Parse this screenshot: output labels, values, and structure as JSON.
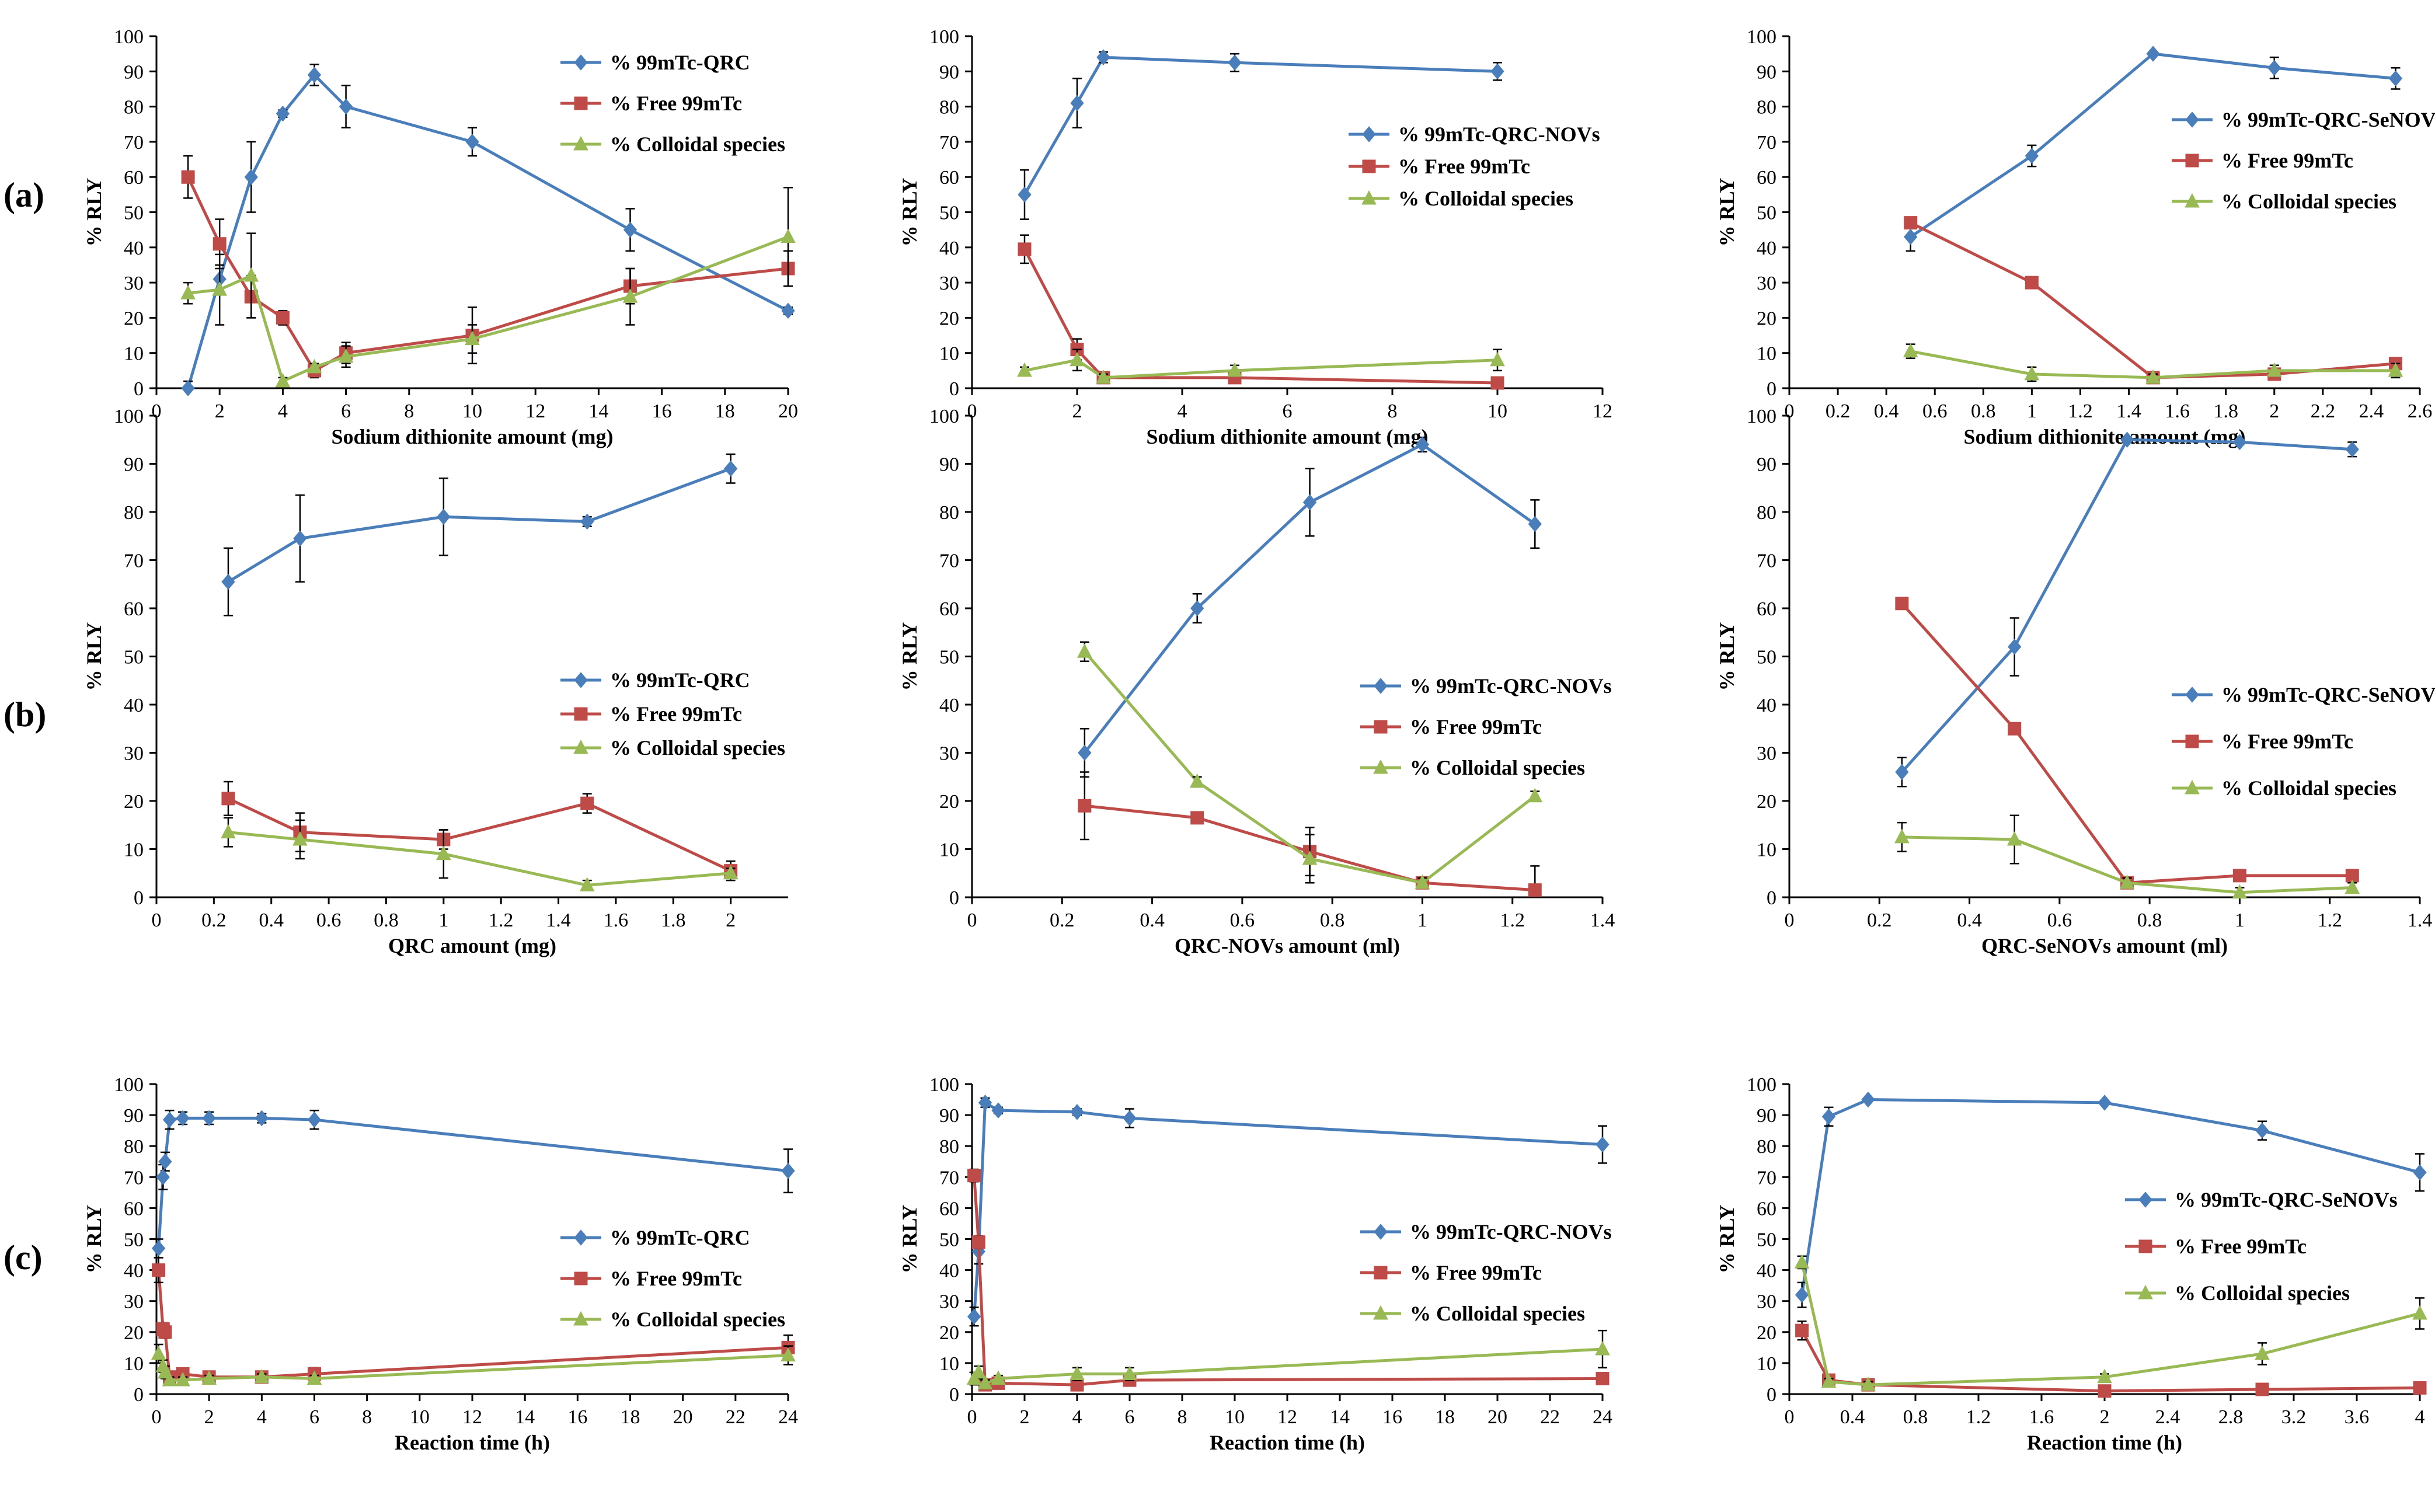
{
  "colors": {
    "blue": "#4a7ebb",
    "red": "#be4b48",
    "green": "#98b954",
    "axis": "#000000"
  },
  "row_labels": [
    "(a)",
    "(b)",
    "(c)"
  ],
  "chart_data": [
    {
      "id": "a1",
      "type": "line",
      "row": "(a)",
      "col": 0,
      "xlabel": "Sodium dithionite amount (mg)",
      "ylabel": "% RLY",
      "xlim": [
        0,
        20
      ],
      "xticks": [
        0,
        2,
        4,
        6,
        8,
        10,
        12,
        14,
        16,
        18,
        20
      ],
      "ylim": [
        0,
        100
      ],
      "yticks": [
        0,
        10,
        20,
        30,
        40,
        50,
        60,
        70,
        80,
        90,
        100
      ],
      "legend_position": "top-right",
      "series": [
        {
          "name": "% 99mTc-QRC",
          "color": "blue",
          "marker": "diamond",
          "x": [
            1,
            2,
            3,
            4,
            5,
            6,
            10,
            15,
            20
          ],
          "y": [
            0,
            31,
            60,
            78,
            89,
            80,
            70,
            45,
            22
          ],
          "err": [
            2,
            4,
            10,
            1,
            3,
            6,
            4,
            6,
            1
          ]
        },
        {
          "name": "% Free 99mTc",
          "color": "red",
          "marker": "square",
          "x": [
            1,
            2,
            3,
            4,
            5,
            6,
            10,
            15,
            20
          ],
          "y": [
            60,
            41,
            26,
            20,
            5,
            10,
            15,
            29,
            34
          ],
          "err": [
            6,
            7,
            6,
            2,
            2,
            3,
            8,
            5,
            5
          ]
        },
        {
          "name": "% Colloidal species",
          "color": "green",
          "marker": "triangle",
          "x": [
            1,
            2,
            3,
            4,
            5,
            6,
            10,
            15,
            20
          ],
          "y": [
            27,
            28,
            32,
            2,
            6,
            9,
            14,
            26,
            43
          ],
          "err": [
            3,
            10,
            12,
            1,
            1,
            3,
            4,
            8,
            14
          ]
        }
      ]
    },
    {
      "id": "a2",
      "type": "line",
      "row": "(a)",
      "col": 1,
      "xlabel": "Sodium dithionite amount (mg)",
      "ylabel": "% RLY",
      "xlim": [
        0,
        12
      ],
      "xticks": [
        0,
        2,
        4,
        6,
        8,
        10,
        12
      ],
      "ylim": [
        0,
        100
      ],
      "yticks": [
        0,
        10,
        20,
        30,
        40,
        50,
        60,
        70,
        80,
        90,
        100
      ],
      "legend_position": "right",
      "series": [
        {
          "name": "% 99mTc-QRC-NOVs",
          "color": "blue",
          "marker": "diamond",
          "x": [
            1,
            2,
            2.5,
            5,
            10
          ],
          "y": [
            55,
            81,
            94,
            92.5,
            90
          ],
          "err": [
            7,
            7,
            1.5,
            2.5,
            2.5
          ]
        },
        {
          "name": "% Free 99mTc",
          "color": "red",
          "marker": "square",
          "x": [
            1,
            2,
            2.5,
            5,
            10
          ],
          "y": [
            39.5,
            11,
            3,
            3,
            1.5
          ],
          "err": [
            4,
            3,
            1,
            1,
            1
          ]
        },
        {
          "name": "% Colloidal species",
          "color": "green",
          "marker": "triangle",
          "x": [
            1,
            2,
            2.5,
            5,
            10
          ],
          "y": [
            5,
            8,
            3,
            5,
            8
          ],
          "err": [
            1,
            3,
            1,
            1.5,
            3
          ]
        }
      ]
    },
    {
      "id": "a3",
      "type": "line",
      "row": "(a)",
      "col": 2,
      "xlabel": "Sodium dithionite amount (mg)",
      "ylabel": "% RLY",
      "xlim": [
        0,
        2.6
      ],
      "xticks": [
        0,
        0.2,
        0.4,
        0.6,
        0.8,
        1,
        1.2,
        1.4,
        1.6,
        1.8,
        2,
        2.2,
        2.4,
        2.6
      ],
      "ylim": [
        0,
        100
      ],
      "yticks": [
        0,
        10,
        20,
        30,
        40,
        50,
        60,
        70,
        80,
        90,
        100
      ],
      "legend_position": "right",
      "series": [
        {
          "name": "% 99mTc-QRC-SeNOVs",
          "color": "blue",
          "marker": "diamond",
          "x": [
            0.5,
            1,
            1.5,
            2,
            2.5
          ],
          "y": [
            43,
            66,
            95,
            91,
            88
          ],
          "err": [
            4,
            3,
            0.5,
            3,
            3
          ]
        },
        {
          "name": "% Free 99mTc",
          "color": "red",
          "marker": "square",
          "x": [
            0.5,
            1,
            1.5,
            2,
            2.5
          ],
          "y": [
            47,
            30,
            3,
            4,
            7
          ],
          "err": [
            1,
            1,
            0.5,
            1,
            1
          ]
        },
        {
          "name": "% Colloidal species",
          "color": "green",
          "marker": "triangle",
          "x": [
            0.5,
            1,
            1.5,
            2,
            2.5
          ],
          "y": [
            10.5,
            4,
            3,
            5,
            5
          ],
          "err": [
            2,
            2,
            1,
            1.5,
            2
          ]
        }
      ]
    },
    {
      "id": "b1",
      "type": "line",
      "row": "(b)",
      "col": 0,
      "xlabel": "QRC amount (mg)",
      "ylabel": "% RLY",
      "xlim": [
        0,
        2.2
      ],
      "xticks": [
        0,
        0.2,
        0.4,
        0.6,
        0.8,
        1,
        1.2,
        1.4,
        1.6,
        1.8,
        2
      ],
      "ylim": [
        0,
        100
      ],
      "yticks": [
        0,
        10,
        20,
        30,
        40,
        50,
        60,
        70,
        80,
        90,
        100
      ],
      "legend_position": "right",
      "series": [
        {
          "name": "% 99mTc-QRC",
          "color": "blue",
          "marker": "diamond",
          "x": [
            0.25,
            0.5,
            1,
            1.5,
            2
          ],
          "y": [
            65.5,
            74.5,
            79,
            78,
            89
          ],
          "err": [
            7,
            9,
            8,
            1,
            3
          ]
        },
        {
          "name": "% Free 99mTc",
          "color": "red",
          "marker": "square",
          "x": [
            0.25,
            0.5,
            1,
            1.5,
            2
          ],
          "y": [
            20.5,
            13.5,
            12,
            19.5,
            5.5
          ],
          "err": [
            3.5,
            4,
            2,
            2,
            2
          ]
        },
        {
          "name": "% Colloidal species",
          "color": "green",
          "marker": "triangle",
          "x": [
            0.25,
            0.5,
            1,
            1.5,
            2
          ],
          "y": [
            13.5,
            12,
            9,
            2.5,
            5
          ],
          "err": [
            3,
            4,
            5,
            1,
            1
          ]
        }
      ]
    },
    {
      "id": "b2",
      "type": "line",
      "row": "(b)",
      "col": 1,
      "xlabel": "QRC-NOVs amount (ml)",
      "ylabel": "% RLY",
      "xlim": [
        0,
        1.4
      ],
      "xticks": [
        0,
        0.2,
        0.4,
        0.6,
        0.8,
        1,
        1.2,
        1.4
      ],
      "ylim": [
        0,
        100
      ],
      "yticks": [
        0,
        10,
        20,
        30,
        40,
        50,
        60,
        70,
        80,
        90,
        100
      ],
      "legend_position": "right",
      "series": [
        {
          "name": "% 99mTc-QRC-NOVs",
          "color": "blue",
          "marker": "diamond",
          "x": [
            0.25,
            0.5,
            0.75,
            1,
            1.25
          ],
          "y": [
            30,
            60,
            82,
            94,
            77.5
          ],
          "err": [
            5,
            3,
            7,
            1.5,
            5
          ]
        },
        {
          "name": "% Free 99mTc",
          "color": "red",
          "marker": "square",
          "x": [
            0.25,
            0.5,
            0.75,
            1,
            1.25
          ],
          "y": [
            19,
            16.5,
            9.5,
            3,
            1.5
          ],
          "err": [
            7,
            1,
            5,
            1,
            5
          ]
        },
        {
          "name": "% Colloidal species",
          "color": "green",
          "marker": "triangle",
          "x": [
            0.25,
            0.5,
            0.75,
            1,
            1.25
          ],
          "y": [
            51,
            24,
            8,
            3,
            21
          ],
          "err": [
            2,
            1,
            5,
            1,
            1
          ]
        }
      ]
    },
    {
      "id": "b3",
      "type": "line",
      "row": "(b)",
      "col": 2,
      "xlabel": "QRC-SeNOVs amount (ml)",
      "ylabel": "% RLY",
      "xlim": [
        0,
        1.4
      ],
      "xticks": [
        0,
        0.2,
        0.4,
        0.6,
        0.8,
        1,
        1.2,
        1.4
      ],
      "ylim": [
        0,
        100
      ],
      "yticks": [
        0,
        10,
        20,
        30,
        40,
        50,
        60,
        70,
        80,
        90,
        100
      ],
      "legend_position": "right",
      "series": [
        {
          "name": "% 99mTc-QRC-SeNOVs",
          "color": "blue",
          "marker": "diamond",
          "x": [
            0.25,
            0.5,
            0.75,
            1,
            1.25
          ],
          "y": [
            26,
            52,
            95,
            94.5,
            93
          ],
          "err": [
            3,
            6,
            0.5,
            0.5,
            1.5
          ]
        },
        {
          "name": "% Free 99mTc",
          "color": "red",
          "marker": "square",
          "x": [
            0.25,
            0.5,
            0.75,
            1,
            1.25
          ],
          "y": [
            61,
            35,
            3,
            4.5,
            4.5
          ],
          "err": [
            0.5,
            0.5,
            0.5,
            0.5,
            0.5
          ]
        },
        {
          "name": "% Colloidal species",
          "color": "green",
          "marker": "triangle",
          "x": [
            0.25,
            0.5,
            0.75,
            1,
            1.25
          ],
          "y": [
            12.5,
            12,
            3,
            1,
            2
          ],
          "err": [
            3,
            5,
            1,
            1,
            1
          ]
        }
      ]
    },
    {
      "id": "c1",
      "type": "line",
      "row": "(c)",
      "col": 0,
      "xlabel": "Reaction time (h)",
      "ylabel": "% RLY",
      "xlim": [
        0,
        24
      ],
      "xticks": [
        0,
        2,
        4,
        6,
        8,
        10,
        12,
        14,
        16,
        18,
        20,
        22,
        24
      ],
      "ylim": [
        0,
        100
      ],
      "yticks": [
        0,
        10,
        20,
        30,
        40,
        50,
        60,
        70,
        80,
        90,
        100
      ],
      "legend_position": "right",
      "series": [
        {
          "name": "% 99mTc-QRC",
          "color": "blue",
          "marker": "diamond",
          "x": [
            0.08,
            0.25,
            0.33,
            0.5,
            1,
            2,
            4,
            6,
            24
          ],
          "y": [
            47,
            70,
            75,
            88.5,
            89,
            89,
            89,
            88.5,
            72
          ],
          "err": [
            3,
            4,
            3,
            3,
            2,
            2,
            1.5,
            3,
            7
          ]
        },
        {
          "name": "% Free 99mTc",
          "color": "red",
          "marker": "square",
          "x": [
            0.08,
            0.25,
            0.33,
            0.5,
            1,
            2,
            4,
            6,
            24
          ],
          "y": [
            40,
            21,
            20,
            5.5,
            6.5,
            5.5,
            5.5,
            6.5,
            15
          ],
          "err": [
            4,
            2,
            2,
            1,
            1,
            1,
            1,
            2,
            4
          ]
        },
        {
          "name": "% Colloidal species",
          "color": "green",
          "marker": "triangle",
          "x": [
            0.08,
            0.25,
            0.33,
            0.5,
            1,
            2,
            4,
            6,
            24
          ],
          "y": [
            13,
            9,
            7,
            4.5,
            4.5,
            5,
            5.5,
            5,
            12.5
          ],
          "err": [
            3,
            2,
            2,
            1,
            1,
            1,
            1,
            1,
            3
          ]
        }
      ]
    },
    {
      "id": "c2",
      "type": "line",
      "row": "(c)",
      "col": 1,
      "xlabel": "Reaction time (h)",
      "ylabel": "% RLY",
      "xlim": [
        0,
        24
      ],
      "xticks": [
        0,
        2,
        4,
        6,
        8,
        10,
        12,
        14,
        16,
        18,
        20,
        22,
        24
      ],
      "ylim": [
        0,
        100
      ],
      "yticks": [
        0,
        10,
        20,
        30,
        40,
        50,
        60,
        70,
        80,
        90,
        100
      ],
      "legend_position": "right",
      "series": [
        {
          "name": "% 99mTc-QRC-NOVs",
          "color": "blue",
          "marker": "diamond",
          "x": [
            0.08,
            0.25,
            0.5,
            1,
            4,
            6,
            24
          ],
          "y": [
            25,
            46,
            94,
            91.5,
            91,
            89,
            80.5
          ],
          "err": [
            3,
            4,
            1.5,
            1,
            1,
            3,
            6
          ]
        },
        {
          "name": "% Free 99mTc",
          "color": "red",
          "marker": "square",
          "x": [
            0.08,
            0.25,
            0.5,
            1,
            4,
            6,
            24
          ],
          "y": [
            70.5,
            49,
            3,
            3.5,
            3,
            4.5,
            5
          ],
          "err": [
            2,
            2,
            1,
            1,
            1,
            1,
            1
          ]
        },
        {
          "name": "% Colloidal species",
          "color": "green",
          "marker": "triangle",
          "x": [
            0.08,
            0.25,
            0.5,
            1,
            4,
            6,
            24
          ],
          "y": [
            5,
            7,
            3.5,
            5,
            6.5,
            6.5,
            14.5
          ],
          "err": [
            2,
            2,
            1,
            1,
            2,
            2,
            6
          ]
        }
      ]
    },
    {
      "id": "c3",
      "type": "line",
      "row": "(c)",
      "col": 2,
      "xlabel": "Reaction time (h)",
      "ylabel": "% RLY",
      "xlim": [
        0,
        4
      ],
      "xticks": [
        0,
        0.4,
        0.8,
        1.2,
        1.6,
        2,
        2.4,
        2.8,
        3.2,
        3.6,
        4
      ],
      "ylim": [
        0,
        100
      ],
      "yticks": [
        0,
        10,
        20,
        30,
        40,
        50,
        60,
        70,
        80,
        90,
        100
      ],
      "legend_position": "right",
      "series": [
        {
          "name": "% 99mTc-QRC-SeNOVs",
          "color": "blue",
          "marker": "diamond",
          "x": [
            0.08,
            0.25,
            0.5,
            2,
            3,
            4
          ],
          "y": [
            32,
            89.5,
            95,
            94,
            85,
            71.5
          ],
          "err": [
            4,
            3,
            0.5,
            0.5,
            3,
            6
          ]
        },
        {
          "name": "% Free 99mTc",
          "color": "red",
          "marker": "square",
          "x": [
            0.08,
            0.25,
            0.5,
            2,
            3,
            4
          ],
          "y": [
            20.5,
            4.5,
            3,
            1,
            1.5,
            2
          ],
          "err": [
            3,
            1,
            0.5,
            0.5,
            0.5,
            0.5
          ]
        },
        {
          "name": "% Colloidal species",
          "color": "green",
          "marker": "triangle",
          "x": [
            0.08,
            0.25,
            0.5,
            2,
            3,
            4
          ],
          "y": [
            42.5,
            4,
            3,
            5.5,
            13,
            26
          ],
          "err": [
            2,
            1,
            1,
            1,
            3.5,
            5
          ]
        }
      ]
    }
  ]
}
